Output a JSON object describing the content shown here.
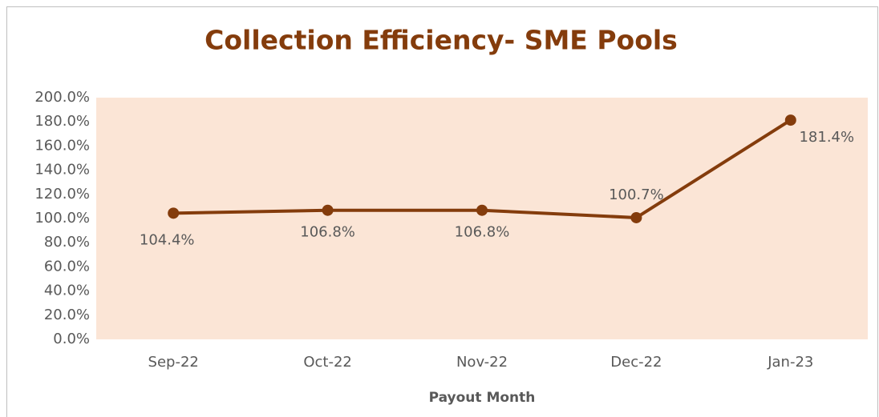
{
  "chart_data": {
    "type": "line",
    "title": "Collection Efficiency- SME Pools",
    "x_label": "Payout Month",
    "categories": [
      "Sep-22",
      "Oct-22",
      "Nov-22",
      "Dec-22",
      "Jan-23"
    ],
    "series": [
      {
        "name": "Collection Efficiency",
        "color": "#843c0c",
        "values": [
          104.4,
          106.8,
          106.8,
          100.7,
          181.4
        ],
        "value_labels": [
          "104.4%",
          "106.8%",
          "106.8%",
          "100.7%",
          "181.4%"
        ]
      }
    ],
    "ylim": [
      0,
      200
    ],
    "yticks": [
      {
        "value": 0,
        "label": "0.0%"
      },
      {
        "value": 20,
        "label": "20.0%"
      },
      {
        "value": 40,
        "label": "40.0%"
      },
      {
        "value": 60,
        "label": "60.0%"
      },
      {
        "value": 80,
        "label": "80.0%"
      },
      {
        "value": 100,
        "label": "100.0%"
      },
      {
        "value": 120,
        "label": "120.0%"
      },
      {
        "value": 140,
        "label": "140.0%"
      },
      {
        "value": 160,
        "label": "160.0%"
      },
      {
        "value": 180,
        "label": "180.0%"
      },
      {
        "value": 200,
        "label": "200.0%"
      }
    ],
    "grid": false,
    "plot_background": "#fbe5d6"
  }
}
